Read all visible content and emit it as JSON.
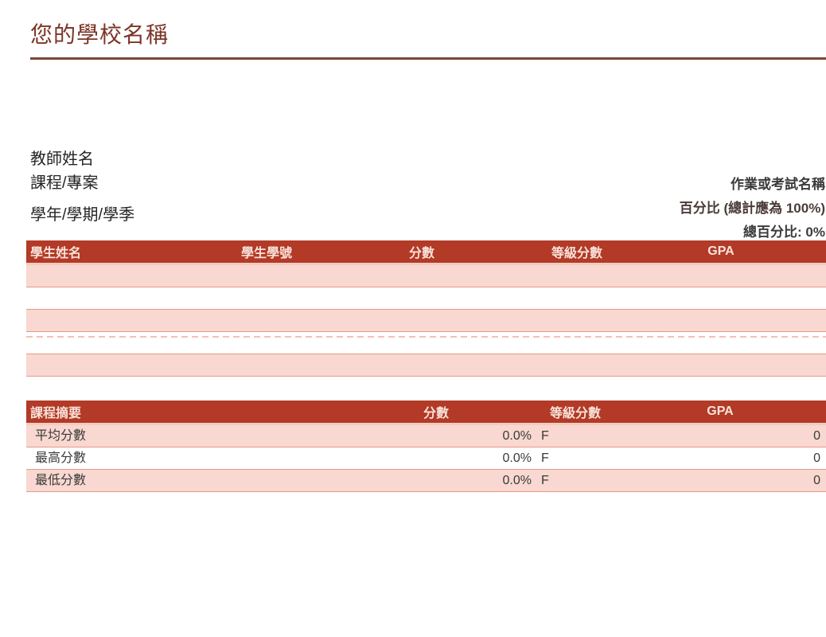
{
  "title": "您的學校名稱",
  "info": {
    "teacher_label": "教師姓名",
    "course_label": "課程/專案",
    "term_label": "學年/學期/學季",
    "assignment_label": "作業或考試名稱",
    "percentage_label": "百分比 (總計應為 100%)",
    "total_percentage_label": "總百分比: 0%"
  },
  "students_table": {
    "headers": [
      "學生姓名",
      "學生學號",
      "分數",
      "等級分數",
      "GPA"
    ],
    "empty_row_count": 5
  },
  "summary_table": {
    "headers": [
      "課程摘要",
      "分數",
      "等級分數",
      "GPA"
    ],
    "rows": [
      {
        "label": "平均分數",
        "score": "0.0%",
        "grade": "F",
        "gpa": "0"
      },
      {
        "label": "最高分數",
        "score": "0.0%",
        "grade": "F",
        "gpa": "0"
      },
      {
        "label": "最低分數",
        "score": "0.0%",
        "grade": "F",
        "gpa": "0"
      }
    ]
  },
  "colors": {
    "header_bg": "#B23A26",
    "header_text": "#F9E2DA",
    "row_pink": "#F8D8D0",
    "row_border": "#E89A8A",
    "title_maroon": "#7C3528",
    "rule": "#7D4539",
    "text_dark": "#3A3A3A"
  }
}
